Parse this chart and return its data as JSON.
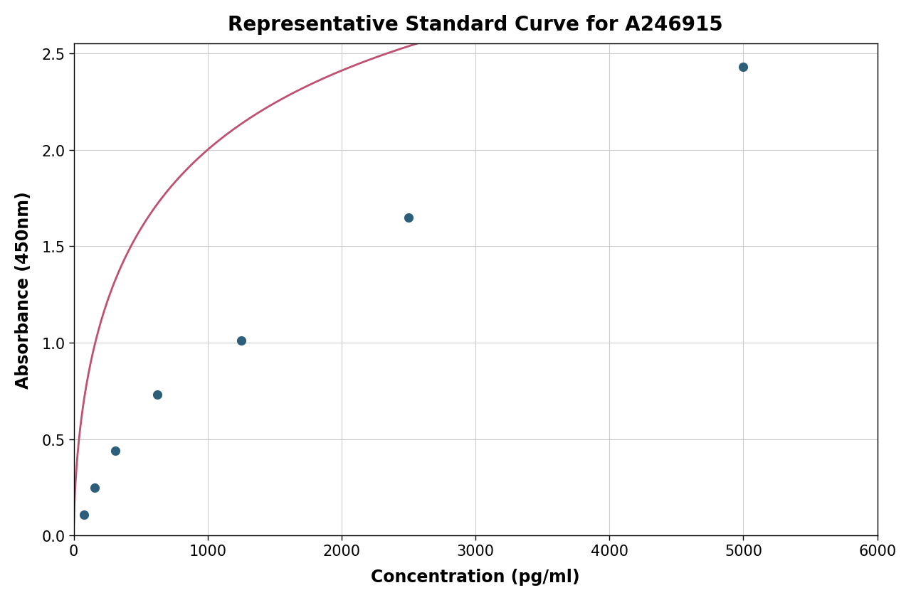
{
  "title": "Representative Standard Curve for A246915",
  "xlabel": "Concentration (pg/ml)",
  "ylabel": "Absorbance (450nm)",
  "data_points_x": [
    78,
    156,
    312,
    625,
    1250,
    2500,
    5000
  ],
  "data_points_y": [
    0.11,
    0.25,
    0.44,
    0.73,
    1.01,
    1.65,
    2.43
  ],
  "dot_color": "#2e5f7a",
  "curve_color": "#c05070",
  "dot_size": 90,
  "xlim": [
    0,
    6000
  ],
  "ylim": [
    0.0,
    2.55
  ],
  "xticks": [
    0,
    1000,
    2000,
    3000,
    4000,
    5000,
    6000
  ],
  "yticks": [
    0.0,
    0.5,
    1.0,
    1.5,
    2.0,
    2.5
  ],
  "title_fontsize": 20,
  "label_fontsize": 17,
  "tick_fontsize": 15,
  "title_fontweight": "bold",
  "label_fontweight": "bold",
  "grid_color": "#cccccc",
  "background_color": "#ffffff",
  "figure_width": 12.8,
  "figure_height": 8.45
}
